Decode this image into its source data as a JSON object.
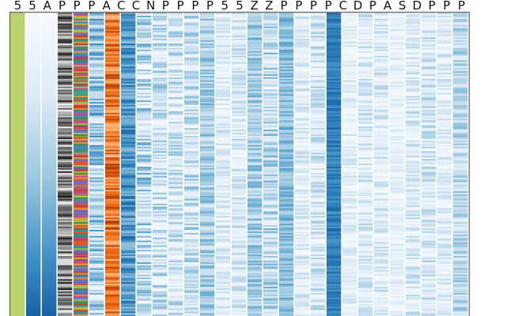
{
  "chart_data": {
    "type": "heatmap",
    "title": "",
    "xlabel": "",
    "ylabel": "",
    "legend": "none",
    "row_count": 200,
    "header_glyphs": [
      "5",
      "5",
      "A",
      "P",
      "P",
      "P",
      "A",
      "C",
      "C",
      "N",
      "P",
      "P",
      "P",
      "P",
      "5",
      "5",
      "Z",
      "Z",
      "P",
      "P",
      "P",
      "P",
      "C",
      "D",
      "P",
      "A",
      "S",
      "D",
      "P",
      "P",
      "P"
    ],
    "columns": [
      {
        "id": "c01",
        "style": "solid",
        "palette": "#bcd26a"
      },
      {
        "id": "c02",
        "style": "gradient",
        "palette": "blue",
        "from": 0.0,
        "to": 1.0
      },
      {
        "id": "c03",
        "style": "gradient",
        "palette": "blue",
        "from": 0.0,
        "to": 1.0
      },
      {
        "id": "c04",
        "style": "random",
        "palette": "gray",
        "mean": 0.5,
        "spread": 0.5
      },
      {
        "id": "c05",
        "style": "random",
        "palette": "multi",
        "mean": 0.5,
        "spread": 0.5
      },
      {
        "id": "c06",
        "style": "random",
        "palette": "blue",
        "mean": 0.45,
        "spread": 0.35
      },
      {
        "id": "c07",
        "style": "random",
        "palette": "orange",
        "mean": 0.6,
        "spread": 0.35
      },
      {
        "id": "c08",
        "style": "random",
        "palette": "blue",
        "mean": 0.72,
        "spread": 0.2
      },
      {
        "id": "c09",
        "style": "random",
        "palette": "blue",
        "mean": 0.35,
        "spread": 0.35
      },
      {
        "id": "c10",
        "style": "random",
        "palette": "blue",
        "mean": 0.3,
        "spread": 0.3
      },
      {
        "id": "c11",
        "style": "random",
        "palette": "blue",
        "mean": 0.28,
        "spread": 0.28
      },
      {
        "id": "c12",
        "style": "random",
        "palette": "blue",
        "mean": 0.3,
        "spread": 0.3
      },
      {
        "id": "c13",
        "style": "random",
        "palette": "blue",
        "mean": 0.45,
        "spread": 0.2
      },
      {
        "id": "c14",
        "style": "random",
        "palette": "blue",
        "mean": 0.2,
        "spread": 0.2
      },
      {
        "id": "c15",
        "style": "random",
        "palette": "blue",
        "mean": 0.22,
        "spread": 0.22
      },
      {
        "id": "c16",
        "style": "random",
        "palette": "blue",
        "mean": 0.45,
        "spread": 0.2
      },
      {
        "id": "c17",
        "style": "random",
        "palette": "blue",
        "mean": 0.35,
        "spread": 0.3
      },
      {
        "id": "c18",
        "style": "random",
        "palette": "blue",
        "mean": 0.55,
        "spread": 0.15
      },
      {
        "id": "c19",
        "style": "random",
        "palette": "blue",
        "mean": 0.2,
        "spread": 0.2
      },
      {
        "id": "c20",
        "style": "random",
        "palette": "blue",
        "mean": 0.25,
        "spread": 0.25
      },
      {
        "id": "c21",
        "style": "random",
        "palette": "blue",
        "mean": 0.82,
        "spread": 0.1
      },
      {
        "id": "c22",
        "style": "random",
        "palette": "blue",
        "mean": 0.18,
        "spread": 0.18
      },
      {
        "id": "c23",
        "style": "random",
        "palette": "blue",
        "mean": 0.22,
        "spread": 0.22
      },
      {
        "id": "c24",
        "style": "random",
        "palette": "blue",
        "mean": 0.22,
        "spread": 0.22
      },
      {
        "id": "c25",
        "style": "random",
        "palette": "blue",
        "mean": 0.15,
        "spread": 0.15
      },
      {
        "id": "c26",
        "style": "random",
        "palette": "blue",
        "mean": 0.22,
        "spread": 0.22
      },
      {
        "id": "c27",
        "style": "random",
        "palette": "blue",
        "mean": 0.25,
        "spread": 0.25
      },
      {
        "id": "c28",
        "style": "random",
        "palette": "blue",
        "mean": 0.2,
        "spread": 0.2
      },
      {
        "id": "c29",
        "style": "random",
        "palette": "blue",
        "mean": 0.38,
        "spread": 0.2
      }
    ]
  }
}
